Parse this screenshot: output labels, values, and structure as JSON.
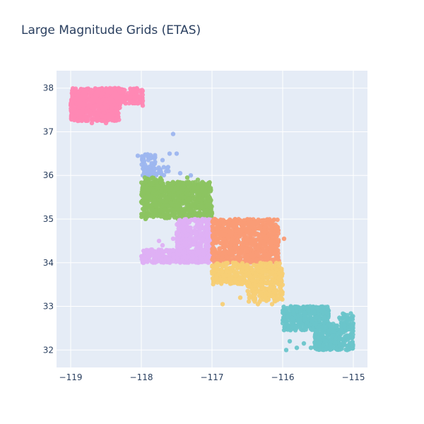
{
  "chart_data": {
    "type": "scatter",
    "title": "Large Magnitude Grids (ETAS)",
    "xlabel": "",
    "ylabel": "",
    "xlim": [
      -119.2,
      -114.8
    ],
    "ylim": [
      31.6,
      38.4
    ],
    "x_ticks": [
      -119,
      -118,
      -117,
      -116,
      -115
    ],
    "x_tick_labels": [
      "−119",
      "−118",
      "−117",
      "−116",
      "−115"
    ],
    "y_ticks": [
      32,
      33,
      34,
      35,
      36,
      37,
      38
    ],
    "y_tick_labels": [
      "32",
      "33",
      "34",
      "35",
      "36",
      "37",
      "38"
    ],
    "grid": true,
    "legend": "none",
    "background_color": "#e5ecf6",
    "grid_color": "#ffffff",
    "series": [
      {
        "color": "#ff88b4",
        "regions": [
          {
            "x": [
              -119.0,
              -118.3
            ],
            "y": [
              37.25,
              38.0
            ],
            "n": 650
          },
          {
            "x": [
              -118.45,
              -117.98
            ],
            "y": [
              37.65,
              38.0
            ],
            "n": 160
          }
        ],
        "points": [
          [
            -118.05,
            37.65
          ],
          [
            -117.98,
            37.6
          ],
          [
            -118.5,
            37.2
          ],
          [
            -118.7,
            37.2
          ],
          [
            -118.9,
            37.25
          ]
        ]
      },
      {
        "color": "#9db6ef",
        "regions": [
          {
            "x": [
              -118.0,
              -117.8
            ],
            "y": [
              36.0,
              36.5
            ],
            "n": 55
          },
          {
            "x": [
              -117.9,
              -117.6
            ],
            "y": [
              36.0,
              36.2
            ],
            "n": 30
          }
        ],
        "points": [
          [
            -117.55,
            36.95
          ],
          [
            -117.6,
            36.5
          ],
          [
            -117.5,
            36.5
          ],
          [
            -117.3,
            36.0
          ],
          [
            -117.45,
            36.05
          ],
          [
            -118.05,
            36.45
          ],
          [
            -117.7,
            36.35
          ]
        ]
      },
      {
        "color": "#8cc461",
        "regions": [
          {
            "x": [
              -118.0,
              -117.0
            ],
            "y": [
              35.0,
              35.85
            ],
            "n": 750
          },
          {
            "x": [
              -118.0,
              -117.7
            ],
            "y": [
              35.6,
              35.95
            ],
            "n": 60
          }
        ],
        "points": [
          [
            -117.95,
            35.95
          ],
          [
            -117.35,
            35.95
          ],
          [
            -117.2,
            35.9
          ],
          [
            -117.05,
            35.8
          ]
        ]
      },
      {
        "color": "#deb0f4",
        "regions": [
          {
            "x": [
              -117.5,
              -117.0
            ],
            "y": [
              34.0,
              35.0
            ],
            "n": 420
          },
          {
            "x": [
              -118.0,
              -117.0
            ],
            "y": [
              34.0,
              34.3
            ],
            "n": 300
          }
        ],
        "points": [
          [
            -117.7,
            34.4
          ],
          [
            -117.6,
            34.25
          ],
          [
            -117.85,
            34.3
          ],
          [
            -117.55,
            34.55
          ],
          [
            -117.75,
            34.5
          ]
        ]
      },
      {
        "color": "#fa9c76",
        "regions": [
          {
            "x": [
              -117.0,
              -116.05
            ],
            "y": [
              34.0,
              35.0
            ],
            "n": 800
          }
        ],
        "points": [
          [
            -115.98,
            34.55
          ],
          [
            -116.2,
            34.9
          ],
          [
            -116.25,
            34.7
          ],
          [
            -116.1,
            34.3
          ]
        ]
      },
      {
        "color": "#f7cf75",
        "regions": [
          {
            "x": [
              -117.0,
              -116.0
            ],
            "y": [
              33.5,
              34.0
            ],
            "n": 420
          },
          {
            "x": [
              -116.5,
              -116.0
            ],
            "y": [
              33.1,
              33.5
            ],
            "n": 120
          }
        ],
        "points": [
          [
            -116.85,
            33.05
          ],
          [
            -116.35,
            33.05
          ],
          [
            -116.15,
            33.05
          ],
          [
            -116.6,
            33.2
          ]
        ]
      },
      {
        "color": "#6ac5ca",
        "regions": [
          {
            "x": [
              -116.0,
              -115.35
            ],
            "y": [
              32.45,
              33.0
            ],
            "n": 360
          },
          {
            "x": [
              -115.55,
              -115.0
            ],
            "y": [
              32.0,
              32.6
            ],
            "n": 300
          },
          {
            "x": [
              -115.2,
              -115.0
            ],
            "y": [
              32.5,
              32.85
            ],
            "n": 40
          }
        ],
        "points": [
          [
            -115.95,
            32.0
          ],
          [
            -115.8,
            32.05
          ],
          [
            -115.9,
            32.2
          ],
          [
            -115.6,
            32.05
          ],
          [
            -115.7,
            32.15
          ]
        ]
      }
    ]
  }
}
